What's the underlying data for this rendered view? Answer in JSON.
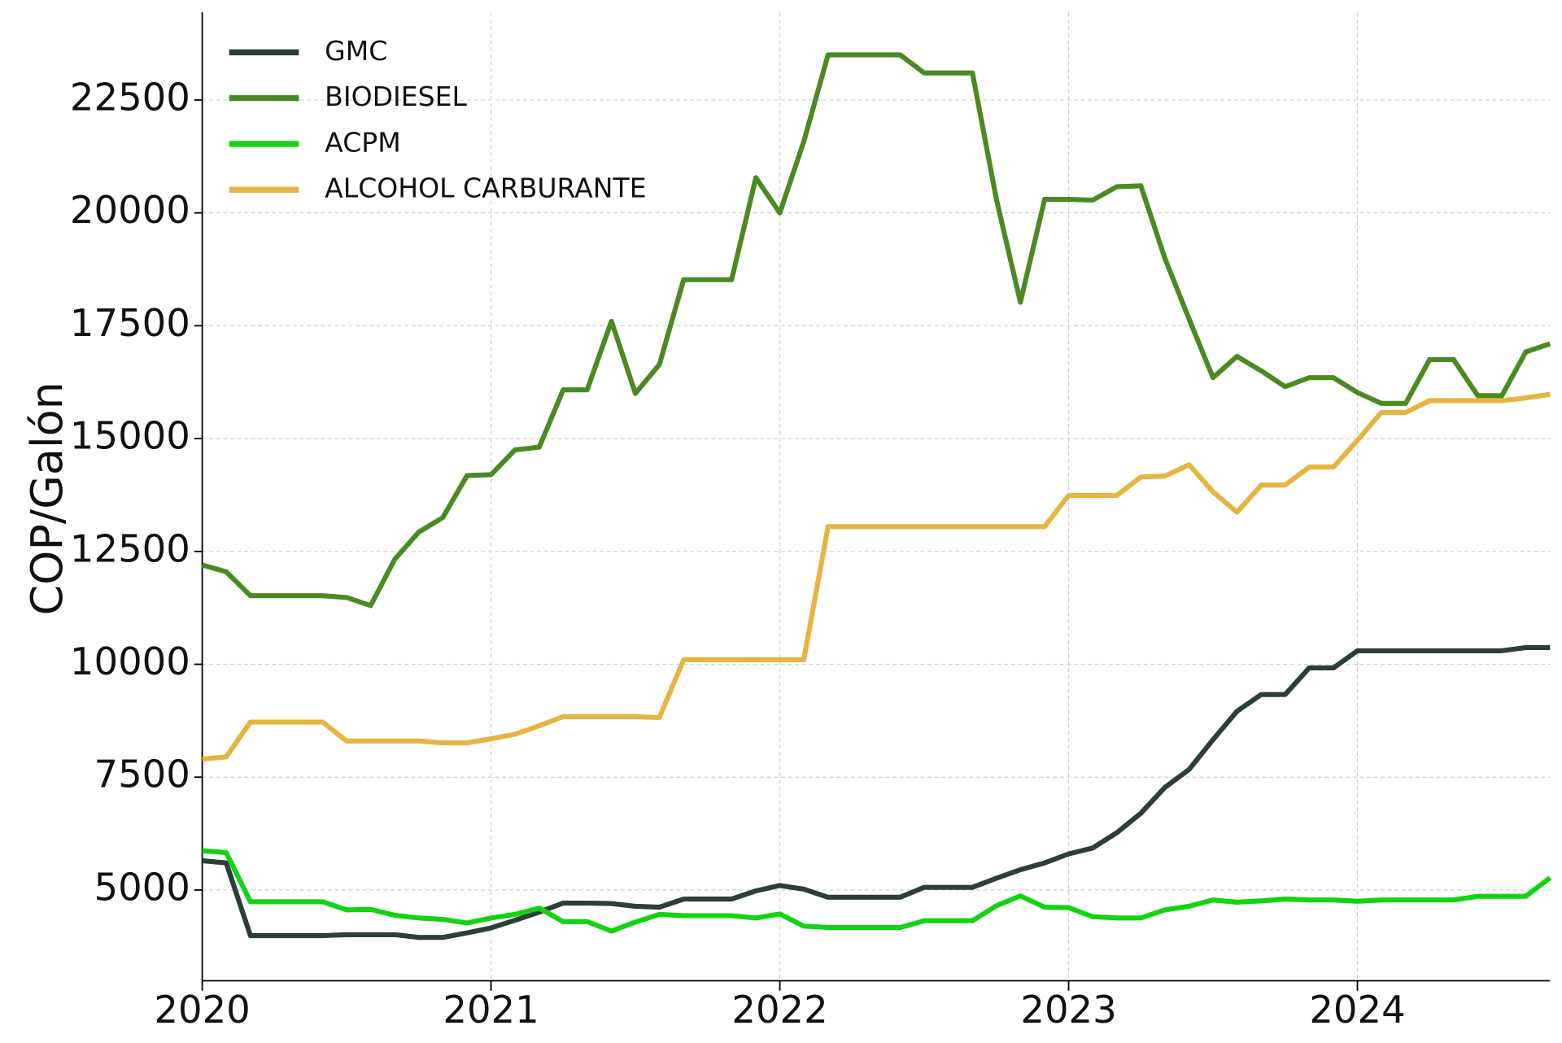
{
  "chart_data": {
    "type": "line",
    "y_label": "COP/Galón",
    "x": [
      2020,
      2020.083,
      2020.167,
      2020.25,
      2020.333,
      2020.417,
      2020.5,
      2020.583,
      2020.667,
      2020.75,
      2020.833,
      2020.917,
      2021,
      2021.083,
      2021.167,
      2021.25,
      2021.333,
      2021.417,
      2021.5,
      2021.583,
      2021.667,
      2021.75,
      2021.833,
      2021.917,
      2022,
      2022.083,
      2022.167,
      2022.25,
      2022.333,
      2022.417,
      2022.5,
      2022.583,
      2022.667,
      2022.75,
      2022.833,
      2022.917,
      2023,
      2023.083,
      2023.167,
      2023.25,
      2023.333,
      2023.417,
      2023.5,
      2023.583,
      2023.667,
      2023.75,
      2023.833,
      2023.917,
      2024,
      2024.083,
      2024.167,
      2024.25,
      2024.333,
      2024.417,
      2024.5,
      2024.583,
      2024.667
    ],
    "series": [
      {
        "name": "GMC",
        "color": "#2b3f37",
        "values": [
          5650,
          5600,
          3990,
          3990,
          3990,
          3990,
          4010,
          4010,
          4010,
          3950,
          3950,
          4050,
          4160,
          4330,
          4510,
          4710,
          4710,
          4700,
          4640,
          4620,
          4800,
          4800,
          4800,
          4980,
          5100,
          5020,
          4840,
          4840,
          4840,
          4840,
          5060,
          5060,
          5060,
          5260,
          5450,
          5600,
          5800,
          5930,
          6270,
          6700,
          7270,
          7670,
          8330,
          8960,
          9330,
          9330,
          9920,
          9920,
          10300,
          10300,
          10300,
          10300,
          10300,
          10300,
          10300,
          10370,
          10370
        ]
      },
      {
        "name": "BIODIESEL",
        "color": "#4a8a22",
        "values": [
          12200,
          12050,
          11520,
          11520,
          11520,
          11520,
          11480,
          11300,
          12330,
          12930,
          13250,
          14180,
          14200,
          14750,
          14810,
          16080,
          16080,
          17600,
          16000,
          16640,
          18520,
          18520,
          18520,
          20780,
          20000,
          21580,
          23500,
          23500,
          23500,
          23500,
          23100,
          23100,
          23100,
          20300,
          18020,
          20300,
          20300,
          20280,
          20580,
          20600,
          19000,
          17650,
          16350,
          16820,
          16500,
          16150,
          16350,
          16350,
          16020,
          15780,
          15780,
          16750,
          16750,
          15950,
          15950,
          16920,
          17100
        ]
      },
      {
        "name": "ACPM",
        "color": "#12d412",
        "values": [
          5870,
          5830,
          4740,
          4740,
          4740,
          4740,
          4560,
          4570,
          4440,
          4380,
          4350,
          4270,
          4380,
          4460,
          4600,
          4300,
          4300,
          4090,
          4290,
          4460,
          4430,
          4430,
          4430,
          4380,
          4470,
          4200,
          4170,
          4170,
          4170,
          4170,
          4320,
          4320,
          4320,
          4650,
          4870,
          4620,
          4610,
          4410,
          4380,
          4380,
          4560,
          4640,
          4780,
          4730,
          4760,
          4800,
          4780,
          4780,
          4750,
          4780,
          4780,
          4780,
          4780,
          4860,
          4860,
          4860,
          5270
        ]
      },
      {
        "name": "ALCOHOL CARBURANTE",
        "color": "#e6b440",
        "values": [
          7900,
          7950,
          8720,
          8720,
          8720,
          8720,
          8300,
          8300,
          8300,
          8300,
          8260,
          8260,
          8350,
          8450,
          8640,
          8840,
          8840,
          8840,
          8840,
          8820,
          10100,
          10100,
          10100,
          10100,
          10100,
          10100,
          13050,
          13050,
          13050,
          13050,
          13050,
          13050,
          13050,
          13050,
          13050,
          13050,
          13740,
          13740,
          13740,
          14150,
          14170,
          14420,
          13820,
          13370,
          13970,
          13970,
          14370,
          14370,
          14960,
          15580,
          15580,
          15840,
          15840,
          15840,
          15840,
          15900,
          15980
        ]
      }
    ],
    "xlim": [
      2020,
      2024.667
    ],
    "xticks": [
      2020,
      2021,
      2022,
      2023,
      2024
    ],
    "ylim": [
      2990,
      24440
    ],
    "yticks": [
      5000,
      7500,
      10000,
      12500,
      15000,
      17500,
      20000,
      22500
    ],
    "grid": true,
    "legend": "upper left"
  }
}
